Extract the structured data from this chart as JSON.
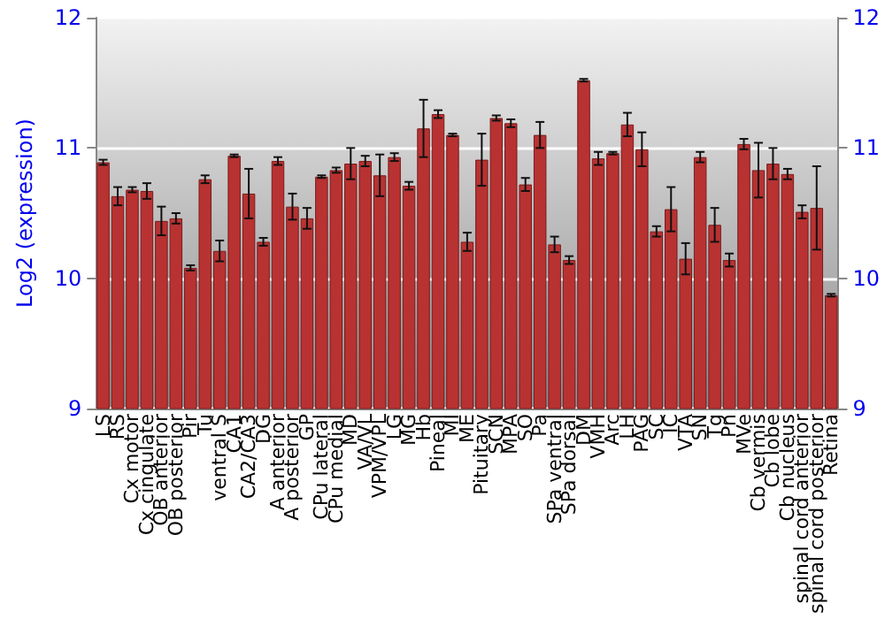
{
  "chart_data": {
    "type": "bar",
    "ylabel": "Log2 (expression)",
    "categories": [
      "LS",
      "RS",
      "Cx motor",
      "Cx cingulate",
      "OB anterior",
      "OB posterior",
      "Pir",
      "Tu",
      "ventral S",
      "CA1",
      "CA2/CA3",
      "DG",
      "A anterior",
      "A posterior",
      "GP",
      "CPu lateral",
      "CPu medial",
      "MD",
      "VA/VL",
      "VPM/VPL",
      "LG",
      "MG",
      "Hb",
      "Pineal",
      "MI",
      "ME",
      "Pituitary",
      "SCN",
      "MPA",
      "SO",
      "Pa",
      "SPa ventral",
      "SPa dorsal",
      "DM",
      "VMH",
      "Arc",
      "LH",
      "PAG",
      "SC",
      "IC",
      "VTA",
      "SN",
      "Tg",
      "Pn",
      "MVe",
      "Cb vermis",
      "Cb lobe",
      "Cb nucleus",
      "spinal cord anterior",
      "spinal cord posterior",
      "Retina"
    ],
    "values": [
      10.89,
      10.63,
      10.68,
      10.67,
      10.44,
      10.46,
      10.08,
      10.76,
      10.21,
      10.94,
      10.65,
      10.28,
      10.9,
      10.55,
      10.46,
      10.78,
      10.83,
      10.88,
      10.9,
      10.79,
      10.93,
      10.71,
      11.15,
      11.26,
      11.1,
      10.28,
      10.91,
      11.23,
      11.19,
      10.72,
      11.1,
      10.26,
      10.14,
      11.52,
      10.92,
      10.96,
      11.18,
      10.99,
      10.36,
      10.53,
      10.15,
      10.93,
      10.41,
      10.14,
      11.03,
      10.83,
      10.88,
      10.8,
      10.51,
      10.54,
      9.87
    ],
    "errors": [
      0.02,
      0.07,
      0.02,
      0.06,
      0.11,
      0.04,
      0.02,
      0.03,
      0.08,
      0.01,
      0.19,
      0.03,
      0.03,
      0.1,
      0.08,
      0.01,
      0.02,
      0.12,
      0.04,
      0.16,
      0.03,
      0.03,
      0.22,
      0.03,
      0.01,
      0.07,
      0.2,
      0.02,
      0.03,
      0.05,
      0.1,
      0.06,
      0.03,
      0.01,
      0.05,
      0.01,
      0.09,
      0.13,
      0.04,
      0.17,
      0.12,
      0.04,
      0.13,
      0.05,
      0.04,
      0.21,
      0.12,
      0.04,
      0.05,
      0.32,
      0.01
    ],
    "color": "#b83232",
    "ylim": [
      9,
      12
    ],
    "yticks": [
      9,
      10,
      11,
      12
    ],
    "y2lim": [
      9,
      12
    ],
    "y2ticks": [
      9,
      10,
      11,
      12
    ],
    "grid": "y"
  }
}
